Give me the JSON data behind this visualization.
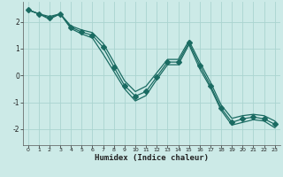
{
  "xlabel": "Humidex (Indice chaleur)",
  "bg_color": "#cceae7",
  "grid_color": "#aad4d0",
  "line_color": "#1a6b62",
  "xlim": [
    -0.5,
    23.5
  ],
  "ylim": [
    -2.6,
    2.75
  ],
  "xticks": [
    0,
    1,
    2,
    3,
    4,
    5,
    6,
    7,
    8,
    9,
    10,
    11,
    12,
    13,
    14,
    15,
    16,
    17,
    18,
    19,
    20,
    21,
    22,
    23
  ],
  "yticks": [
    -2,
    -1,
    0,
    1,
    2
  ],
  "line_upper_x": [
    0,
    1,
    2,
    3,
    4,
    5,
    6,
    7,
    8,
    9,
    10,
    11,
    12,
    13,
    14,
    15,
    16,
    17,
    18,
    19,
    20,
    21,
    22,
    23
  ],
  "line_upper_y": [
    2.45,
    2.3,
    2.2,
    2.3,
    1.85,
    1.7,
    1.6,
    1.2,
    0.5,
    -0.2,
    -0.6,
    -0.4,
    0.1,
    0.6,
    0.6,
    1.3,
    0.5,
    -0.25,
    -1.1,
    -1.6,
    -1.5,
    -1.45,
    -1.5,
    -1.7
  ],
  "line_lower_x": [
    0,
    1,
    2,
    3,
    4,
    5,
    6,
    7,
    8,
    9,
    10,
    11,
    12,
    13,
    14,
    15,
    16,
    17,
    18,
    19,
    20,
    21,
    22,
    23
  ],
  "line_lower_y": [
    2.45,
    2.3,
    2.1,
    2.3,
    1.75,
    1.55,
    1.4,
    0.8,
    0.15,
    -0.5,
    -0.95,
    -0.75,
    -0.15,
    0.4,
    0.4,
    1.15,
    0.25,
    -0.45,
    -1.3,
    -1.85,
    -1.75,
    -1.65,
    -1.7,
    -1.95
  ],
  "line_mid_x": [
    0,
    1,
    2,
    3,
    4,
    5,
    6,
    7,
    8,
    9,
    10,
    11,
    12,
    13,
    14,
    15,
    16,
    17,
    18,
    19,
    20,
    21,
    22,
    23
  ],
  "line_mid_y": [
    2.45,
    2.3,
    2.15,
    2.3,
    1.8,
    1.62,
    1.5,
    1.05,
    0.32,
    -0.38,
    -0.77,
    -0.6,
    -0.05,
    0.5,
    0.5,
    1.22,
    0.38,
    -0.38,
    -1.22,
    -1.75,
    -1.62,
    -1.55,
    -1.62,
    -1.82
  ],
  "line_width": 0.9,
  "marker_size": 3.0
}
